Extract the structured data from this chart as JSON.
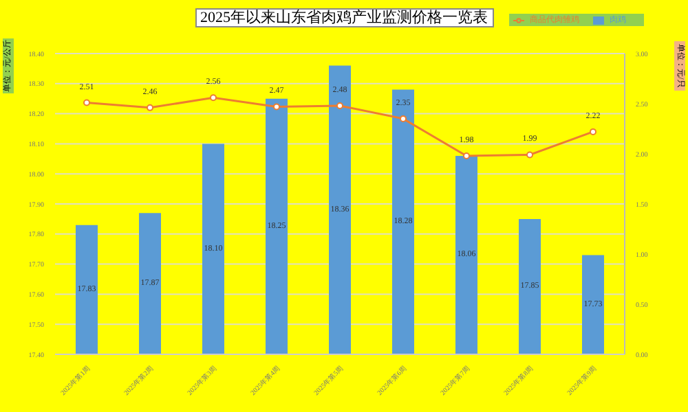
{
  "chart_data": {
    "type": "bar",
    "title": "2025年以来山东省肉鸡产业监测价格一览表",
    "ylabel": "单位：元/公斤",
    "y2label": "单位：元/只",
    "categories": [
      "2025年第1周",
      "2025年第2周",
      "2025年第3周",
      "2025年第4周",
      "2025年第5周",
      "2025年第6周",
      "2025年第7周",
      "2025年第8周",
      "2025年第9周"
    ],
    "series": [
      {
        "name": "肉鸡",
        "color": "#5b9bd5",
        "values": [
          17.83,
          17.87,
          18.1,
          18.25,
          18.36,
          18.28,
          18.06,
          17.85,
          17.73
        ],
        "value_labels": [
          "17.83",
          "17.87",
          "18.10",
          "18.25",
          "18.36",
          "18.28",
          "18.06",
          "17.85",
          "17.73"
        ]
      },
      {
        "name": "商品代肉雏鸡",
        "type": "line",
        "axis": "y2",
        "color": "#ed7d31",
        "values": [
          2.51,
          2.46,
          2.56,
          2.47,
          2.48,
          2.35,
          1.98,
          1.99,
          2.22
        ]
      }
    ],
    "ylim": [
      17.4,
      18.4
    ],
    "yticks": [
      {
        "value": 17.4,
        "label": "17.40"
      },
      {
        "value": 17.5,
        "label": "17.50"
      },
      {
        "value": 17.6,
        "label": "17.60"
      },
      {
        "value": 17.7,
        "label": "17.70"
      },
      {
        "value": 17.8,
        "label": "17.80"
      },
      {
        "value": 17.9,
        "label": "17.90"
      },
      {
        "value": 18.0,
        "label": "18.00"
      },
      {
        "value": 18.1,
        "label": "18.10"
      },
      {
        "value": 18.2,
        "label": "18.20"
      },
      {
        "value": 18.3,
        "label": "18.30"
      },
      {
        "value": 18.4,
        "label": "18.40"
      }
    ],
    "y2lim": [
      0,
      3
    ],
    "y2ticks": [
      {
        "value": 0,
        "label": "0.00"
      },
      {
        "value": 0.5,
        "label": "0.50"
      },
      {
        "value": 1,
        "label": "1.00"
      },
      {
        "value": 1.5,
        "label": "1.50"
      },
      {
        "value": 2,
        "label": "2.00"
      },
      {
        "value": 2.5,
        "label": "2.50"
      },
      {
        "value": 3,
        "label": "3.00"
      }
    ],
    "data_labels": true,
    "grid": "y",
    "legend": "top right",
    "marker": "circle"
  }
}
